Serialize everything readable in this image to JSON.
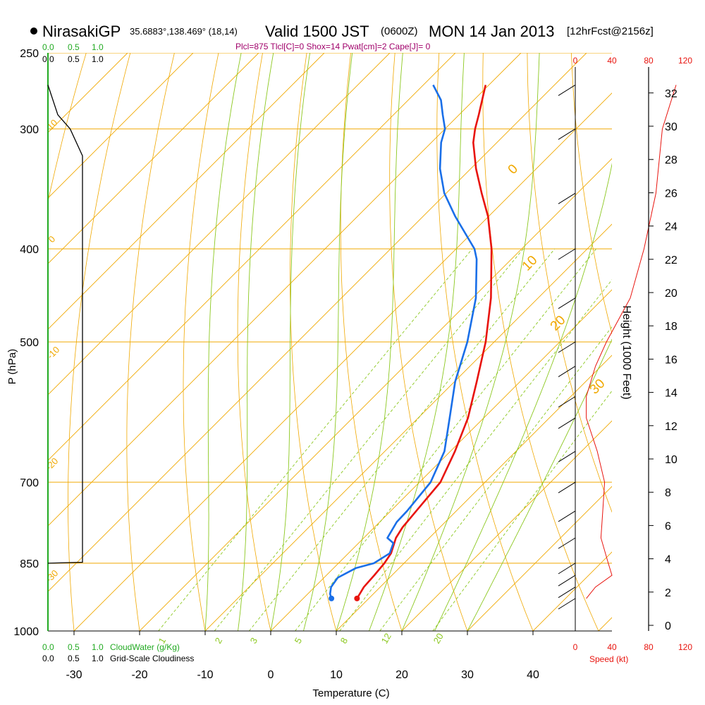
{
  "header": {
    "station": "NirasakiGP",
    "coords": "35.6883°,138.469° (18,14)",
    "valid_label": "Valid 1500 JST",
    "utc": "(0600Z)",
    "date": "MON 14 Jan 2013",
    "forecast": "[12hrFcst@2156z]",
    "indices": "Plcl=875 Tlcl[C]=0 Shox=14 Pwat[cm]=2 Cape[J]= 0"
  },
  "colors": {
    "temperature": "#e8140e",
    "dewpoint": "#1a6fe8",
    "isotherm": "#f0a800",
    "dry_adiabat": "#f0a800",
    "moist_adiabat": "#8cc820",
    "mixing_ratio": "#8cc820",
    "cloud_water": "#22aa22",
    "speed": "#e8140e",
    "indices_text": "#a0006a"
  },
  "panels": {
    "cloud_water_ticks": [
      "0.0",
      "0.5",
      "1.0"
    ],
    "cloudiness_ticks": [
      "0.0",
      "0.5",
      "1.0"
    ],
    "cloud_water_label": "CloudWater (g/Kg)",
    "cloudiness_label": "Grid-Scale Cloudiness",
    "speed_label": "Speed (kt)",
    "height_label": "Height (1000 Feet)"
  },
  "chart_data": {
    "type": "line",
    "subtype": "skew-T log-P sounding",
    "xlabel": "Temperature (C)",
    "ylabel": "P (hPa)",
    "x_ticks": [
      -30,
      -20,
      -10,
      0,
      10,
      20,
      30,
      40
    ],
    "p_ticks": [
      250,
      300,
      400,
      500,
      700,
      850,
      1000
    ],
    "speed_ticks": [
      0,
      40,
      80,
      120
    ],
    "height_ticks": [
      0,
      2,
      4,
      6,
      8,
      10,
      12,
      14,
      16,
      18,
      20,
      22,
      24,
      26,
      28,
      30,
      32
    ],
    "series": [
      {
        "name": "Temperature",
        "points": [
          [
            925,
            8.2
          ],
          [
            900,
            7.5
          ],
          [
            875,
            7.3
          ],
          [
            850,
            7.0
          ],
          [
            830,
            6.5
          ],
          [
            800,
            4.9
          ],
          [
            780,
            4.3
          ],
          [
            750,
            3.9
          ],
          [
            700,
            3.2
          ],
          [
            650,
            0.7
          ],
          [
            600,
            -2.4
          ],
          [
            550,
            -6.6
          ],
          [
            500,
            -11.3
          ],
          [
            450,
            -17.2
          ],
          [
            400,
            -24.6
          ],
          [
            370,
            -30.1
          ],
          [
            350,
            -34.6
          ],
          [
            330,
            -39.2
          ],
          [
            310,
            -43.6
          ],
          [
            300,
            -45.4
          ],
          [
            290,
            -47.0
          ],
          [
            270,
            -50.5
          ]
        ]
      },
      {
        "name": "Dewpoint",
        "points": [
          [
            925,
            4.3
          ],
          [
            915,
            3.4
          ],
          [
            900,
            2.5
          ],
          [
            880,
            2.1
          ],
          [
            860,
            3.4
          ],
          [
            850,
            5.4
          ],
          [
            830,
            6.3
          ],
          [
            810,
            5.3
          ],
          [
            800,
            3.6
          ],
          [
            770,
            2.6
          ],
          [
            750,
            2.5
          ],
          [
            700,
            1.7
          ],
          [
            650,
            -0.9
          ],
          [
            600,
            -5.2
          ],
          [
            550,
            -9.9
          ],
          [
            500,
            -14.1
          ],
          [
            450,
            -19.5
          ],
          [
            410,
            -25.3
          ],
          [
            400,
            -27.2
          ],
          [
            370,
            -35.1
          ],
          [
            350,
            -40.3
          ],
          [
            330,
            -44.7
          ],
          [
            310,
            -48.5
          ],
          [
            300,
            -50.0
          ],
          [
            290,
            -52.5
          ],
          [
            280,
            -55.0
          ],
          [
            270,
            -58.5
          ]
        ]
      }
    ],
    "cloud_water": [
      {
        "p": 250,
        "value": 0.0
      },
      {
        "p": 1000,
        "value": 0.0
      }
    ],
    "cloudiness": [
      {
        "p": 270,
        "value": 0.0
      },
      {
        "p": 290,
        "value": 0.2
      },
      {
        "p": 300,
        "value": 0.45
      },
      {
        "p": 320,
        "value": 0.7
      },
      {
        "p": 848,
        "value": 0.7
      },
      {
        "p": 850,
        "value": 0.0
      }
    ],
    "wind_speed_kt": [
      {
        "p": 925,
        "speed": 12
      },
      {
        "p": 900,
        "speed": 22
      },
      {
        "p": 875,
        "speed": 40
      },
      {
        "p": 850,
        "speed": 36
      },
      {
        "p": 800,
        "speed": 28
      },
      {
        "p": 750,
        "speed": 30
      },
      {
        "p": 700,
        "speed": 32
      },
      {
        "p": 650,
        "speed": 24
      },
      {
        "p": 600,
        "speed": 12
      },
      {
        "p": 570,
        "speed": 12
      },
      {
        "p": 530,
        "speed": 22
      },
      {
        "p": 500,
        "speed": 34
      },
      {
        "p": 450,
        "speed": 60
      },
      {
        "p": 400,
        "speed": 75
      },
      {
        "p": 350,
        "speed": 88
      },
      {
        "p": 300,
        "speed": 95
      },
      {
        "p": 270,
        "speed": 110
      }
    ],
    "isotherm_labels": [
      "10",
      "0",
      "-10",
      "-20",
      "-30",
      "0",
      "10",
      "20",
      "30"
    ],
    "mixing_ratio_labels": [
      "1",
      "2",
      "3",
      "5",
      "8",
      "12",
      "20"
    ]
  }
}
